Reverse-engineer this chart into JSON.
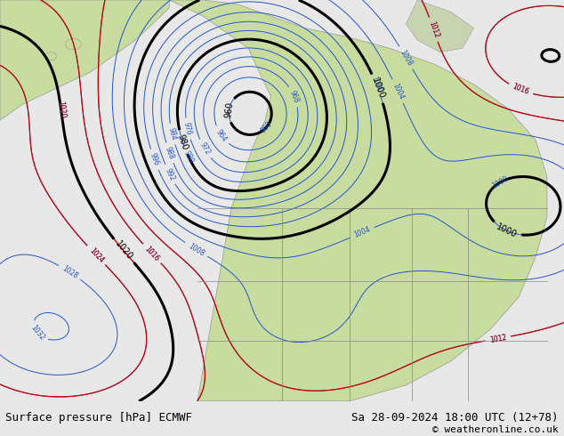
{
  "title_left": "Surface pressure [hPa] ECMWF",
  "title_right": "Sa 28-09-2024 18:00 UTC (12+78)",
  "copyright": "© weatheronline.co.uk",
  "bg_color": "#e8e8e8",
  "map_bg": "#dce8f0",
  "land_color": "#c8dca0",
  "land_detail_color": "#b8c898",
  "figsize": [
    6.34,
    4.9
  ],
  "dpi": 100
}
